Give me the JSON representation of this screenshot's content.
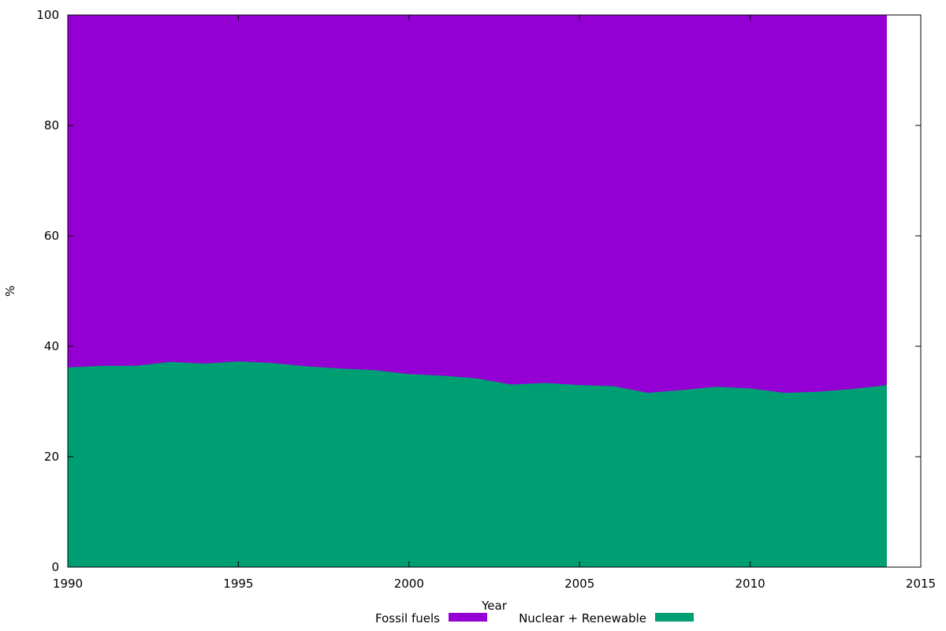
{
  "chart_data": {
    "type": "area",
    "stacked": true,
    "title": "",
    "xlabel": "Year",
    "ylabel": "%",
    "xlim": [
      1990,
      2015
    ],
    "ylim": [
      0,
      100
    ],
    "xticks": [
      1990,
      1995,
      2000,
      2005,
      2010,
      2015
    ],
    "yticks": [
      0,
      20,
      40,
      60,
      80,
      100
    ],
    "grid": false,
    "legend_position": "bottom-center",
    "x": [
      1990,
      1991,
      1992,
      1993,
      1994,
      1995,
      1996,
      1997,
      1998,
      1999,
      2000,
      2001,
      2002,
      2003,
      2004,
      2005,
      2006,
      2007,
      2008,
      2009,
      2010,
      2011,
      2012,
      2013,
      2014
    ],
    "series": [
      {
        "name": "Nuclear + Renewable",
        "color": "#009e73",
        "values": [
          36.2,
          36.5,
          36.5,
          37.2,
          36.9,
          37.3,
          37.0,
          36.4,
          36.0,
          35.7,
          35.0,
          34.7,
          34.2,
          33.1,
          33.4,
          33.0,
          32.8,
          31.6,
          32.1,
          32.7,
          32.4,
          31.6,
          31.8,
          32.3,
          33.0
        ]
      },
      {
        "name": "Fossil fuels",
        "color": "#9400d3",
        "values": [
          63.8,
          63.5,
          63.5,
          62.8,
          63.1,
          62.7,
          63.0,
          63.6,
          64.0,
          64.3,
          65.0,
          65.3,
          65.8,
          66.9,
          66.6,
          67.0,
          67.2,
          68.4,
          67.9,
          67.3,
          67.6,
          68.4,
          68.2,
          67.7,
          67.0
        ]
      }
    ],
    "legend": [
      {
        "label": "Fossil fuels",
        "color": "#9400d3"
      },
      {
        "label": "Nuclear + Renewable",
        "color": "#009e73"
      }
    ]
  }
}
